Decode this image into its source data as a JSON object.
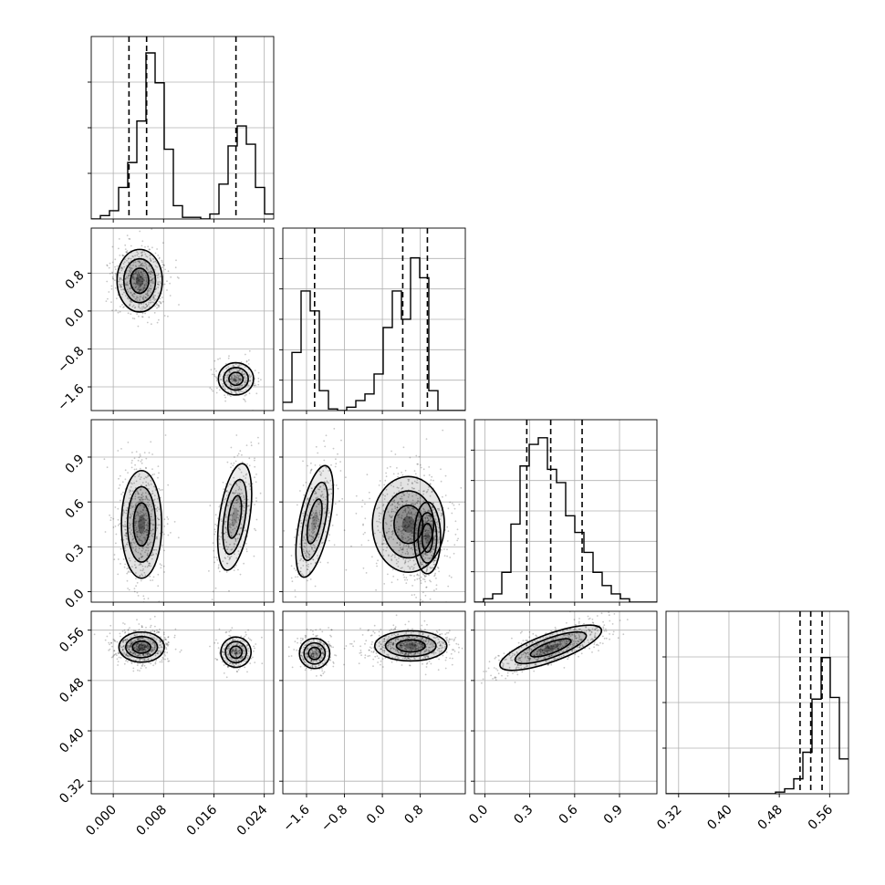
{
  "chart_data": {
    "type": "corner",
    "n_params": 4,
    "grid": true,
    "params": [
      {
        "range": [
          -0.0035,
          0.0255
        ],
        "ticks": [
          0.0,
          0.008,
          0.016,
          0.024
        ],
        "tick_labels": [
          "0.000",
          "0.008",
          "0.016",
          "0.024"
        ],
        "quantiles": [
          0.0025,
          0.0053,
          0.0195
        ]
      },
      {
        "range": [
          -2.1,
          1.75
        ],
        "ticks": [
          -1.6,
          -0.8,
          0.0,
          0.8
        ],
        "tick_labels": [
          "−1.6",
          "−0.8",
          "0.0",
          "0.8"
        ],
        "quantiles": [
          -1.43,
          0.43,
          0.95
        ]
      },
      {
        "range": [
          -0.07,
          1.15
        ],
        "ticks": [
          0.0,
          0.3,
          0.6,
          0.9
        ],
        "tick_labels": [
          "0.0",
          "0.3",
          "0.6",
          "0.9"
        ],
        "quantiles": [
          0.28,
          0.44,
          0.65
        ]
      },
      {
        "range": [
          0.3,
          0.59
        ],
        "ticks": [
          0.32,
          0.4,
          0.48,
          0.56
        ],
        "tick_labels": [
          "0.32",
          "0.40",
          "0.48",
          "0.56"
        ],
        "quantiles": [
          0.513,
          0.53,
          0.548
        ]
      }
    ],
    "diagonal_histograms": [
      {
        "density": [
          0,
          0.02,
          0.05,
          0.19,
          0.34,
          0.59,
          1.0,
          0.82,
          0.42,
          0.08,
          0.01,
          0.01,
          0,
          0.03,
          0.21,
          0.44,
          0.56,
          0.45,
          0.19,
          0.03
        ],
        "y_ticks": 3
      },
      {
        "density": [
          0.05,
          0.35,
          0.72,
          0.6,
          0.12,
          0.01,
          0,
          0.02,
          0.06,
          0.1,
          0.22,
          0.5,
          0.72,
          0.55,
          0.92,
          0.8,
          0.12,
          0,
          0,
          0
        ],
        "y_ticks": 5
      },
      {
        "density": [
          0,
          0.02,
          0.05,
          0.18,
          0.47,
          0.82,
          0.95,
          0.99,
          0.8,
          0.72,
          0.52,
          0.42,
          0.3,
          0.18,
          0.1,
          0.05,
          0.02,
          0,
          0,
          0
        ],
        "y_ticks": 5
      },
      {
        "density": [
          0,
          0,
          0,
          0,
          0,
          0,
          0,
          0,
          0,
          0,
          0,
          0,
          0.01,
          0.03,
          0.09,
          0.25,
          0.57,
          0.82,
          0.58,
          0.21
        ],
        "y_ticks": 3
      }
    ],
    "pairs": [
      {
        "row": 1,
        "col": 0,
        "clusters": [
          {
            "cx": 0.0042,
            "cy": 0.64,
            "sx": 0.0018,
            "sy": 0.33,
            "rot": 0,
            "w": 1
          },
          {
            "cx": 0.0195,
            "cy": -1.43,
            "sx": 0.0014,
            "sy": 0.17,
            "rot": 0,
            "w": 0.45
          }
        ]
      },
      {
        "row": 2,
        "col": 0,
        "clusters": [
          {
            "cx": 0.0045,
            "cy": 0.45,
            "sx": 0.0016,
            "sy": 0.18,
            "rot": 0,
            "w": 1
          },
          {
            "cx": 0.0193,
            "cy": 0.5,
            "sx": 0.0012,
            "sy": 0.18,
            "rot": 0.15,
            "w": 0.55
          }
        ]
      },
      {
        "row": 2,
        "col": 1,
        "clusters": [
          {
            "cx": -1.43,
            "cy": 0.47,
            "sx": 0.16,
            "sy": 0.19,
            "rot": 0.2,
            "w": 0.55
          },
          {
            "cx": 0.55,
            "cy": 0.45,
            "sx": 0.38,
            "sy": 0.16,
            "rot": 0,
            "w": 1
          },
          {
            "cx": 0.95,
            "cy": 0.36,
            "sx": 0.14,
            "sy": 0.12,
            "rot": 0,
            "w": 0.5
          }
        ]
      },
      {
        "row": 3,
        "col": 0,
        "clusters": [
          {
            "cx": 0.0045,
            "cy": 0.533,
            "sx": 0.0018,
            "sy": 0.012,
            "rot": 0,
            "w": 1
          },
          {
            "cx": 0.0195,
            "cy": 0.525,
            "sx": 0.0012,
            "sy": 0.012,
            "rot": 0.3,
            "w": 0.5
          }
        ]
      },
      {
        "row": 3,
        "col": 1,
        "clusters": [
          {
            "cx": -1.43,
            "cy": 0.523,
            "sx": 0.16,
            "sy": 0.012,
            "rot": 0,
            "w": 0.5
          },
          {
            "cx": 0.6,
            "cy": 0.535,
            "sx": 0.38,
            "sy": 0.012,
            "rot": 0,
            "w": 1
          }
        ]
      },
      {
        "row": 3,
        "col": 2,
        "clusters": [
          {
            "cx": 0.44,
            "cy": 0.532,
            "sx": 0.18,
            "sy": 0.011,
            "rot": -0.35,
            "w": 1
          }
        ]
      }
    ]
  }
}
